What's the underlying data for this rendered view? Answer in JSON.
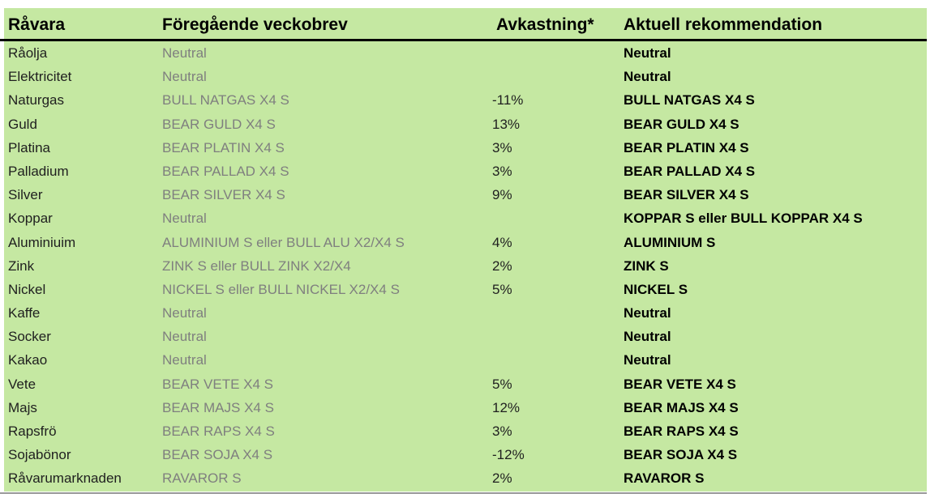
{
  "table": {
    "headers": {
      "commodity": "Råvara",
      "previous": "Föregående veckobrev",
      "return": "Avkastning*",
      "recommendation": "Aktuell rekommendation"
    },
    "rows": [
      {
        "commodity": "Råolja",
        "previous": "Neutral",
        "return": "",
        "recommendation": "Neutral"
      },
      {
        "commodity": "Elektricitet",
        "previous": "Neutral",
        "return": "",
        "recommendation": "Neutral"
      },
      {
        "commodity": "Naturgas",
        "previous": "BULL NATGAS X4 S",
        "return": "-11%",
        "recommendation": "BULL NATGAS X4 S"
      },
      {
        "commodity": "Guld",
        "previous": "BEAR GULD X4 S",
        "return": "13%",
        "recommendation": "BEAR GULD X4 S"
      },
      {
        "commodity": "Platina",
        "previous": "BEAR PLATIN X4 S",
        "return": "3%",
        "recommendation": "BEAR PLATIN X4 S"
      },
      {
        "commodity": "Palladium",
        "previous": "BEAR PALLAD X4 S",
        "return": "3%",
        "recommendation": "BEAR PALLAD X4 S"
      },
      {
        "commodity": "Silver",
        "previous": "BEAR SILVER X4 S",
        "return": "9%",
        "recommendation": "BEAR SILVER X4 S"
      },
      {
        "commodity": "Koppar",
        "previous": "Neutral",
        "return": "",
        "recommendation": "KOPPAR S eller BULL KOPPAR X4 S"
      },
      {
        "commodity": "Aluminiuim",
        "previous": "ALUMINIUM S eller BULL ALU X2/X4 S",
        "return": "4%",
        "recommendation": "ALUMINIUM S"
      },
      {
        "commodity": "Zink",
        "previous": "ZINK S eller BULL ZINK X2/X4",
        "return": "2%",
        "recommendation": "ZINK S"
      },
      {
        "commodity": "Nickel",
        "previous": "NICKEL S eller BULL NICKEL X2/X4 S",
        "return": "5%",
        "recommendation": "NICKEL S"
      },
      {
        "commodity": "Kaffe",
        "previous": "Neutral",
        "return": "",
        "recommendation": "Neutral"
      },
      {
        "commodity": "Socker",
        "previous": "Neutral",
        "return": "",
        "recommendation": "Neutral"
      },
      {
        "commodity": "Kakao",
        "previous": "Neutral",
        "return": "",
        "recommendation": "Neutral"
      },
      {
        "commodity": "Vete",
        "previous": "BEAR VETE X4 S",
        "return": "5%",
        "recommendation": "BEAR VETE X4 S"
      },
      {
        "commodity": "Majs",
        "previous": "BEAR MAJS X4 S",
        "return": "12%",
        "recommendation": "BEAR MAJS X4 S"
      },
      {
        "commodity": "Rapsfrö",
        "previous": "BEAR RAPS X4 S",
        "return": "3%",
        "recommendation": "BEAR RAPS X4 S"
      },
      {
        "commodity": "Sojabönor",
        "previous": "BEAR SOJA X4 S",
        "return": "-12%",
        "recommendation": "BEAR SOJA X4 S"
      },
      {
        "commodity": "Råvarumarknaden",
        "previous": "RAVAROR S",
        "return": "2%",
        "recommendation": "RAVAROR S"
      }
    ]
  },
  "colors": {
    "background": "#ffffff",
    "table_green": "#c5e8a2",
    "previous_column_text": "#7f7f7f",
    "body_text": "#1f1f1f",
    "recommendation_text": "#000000",
    "header_divider": "#000000",
    "bottom_divider": "#9a9a9a"
  }
}
